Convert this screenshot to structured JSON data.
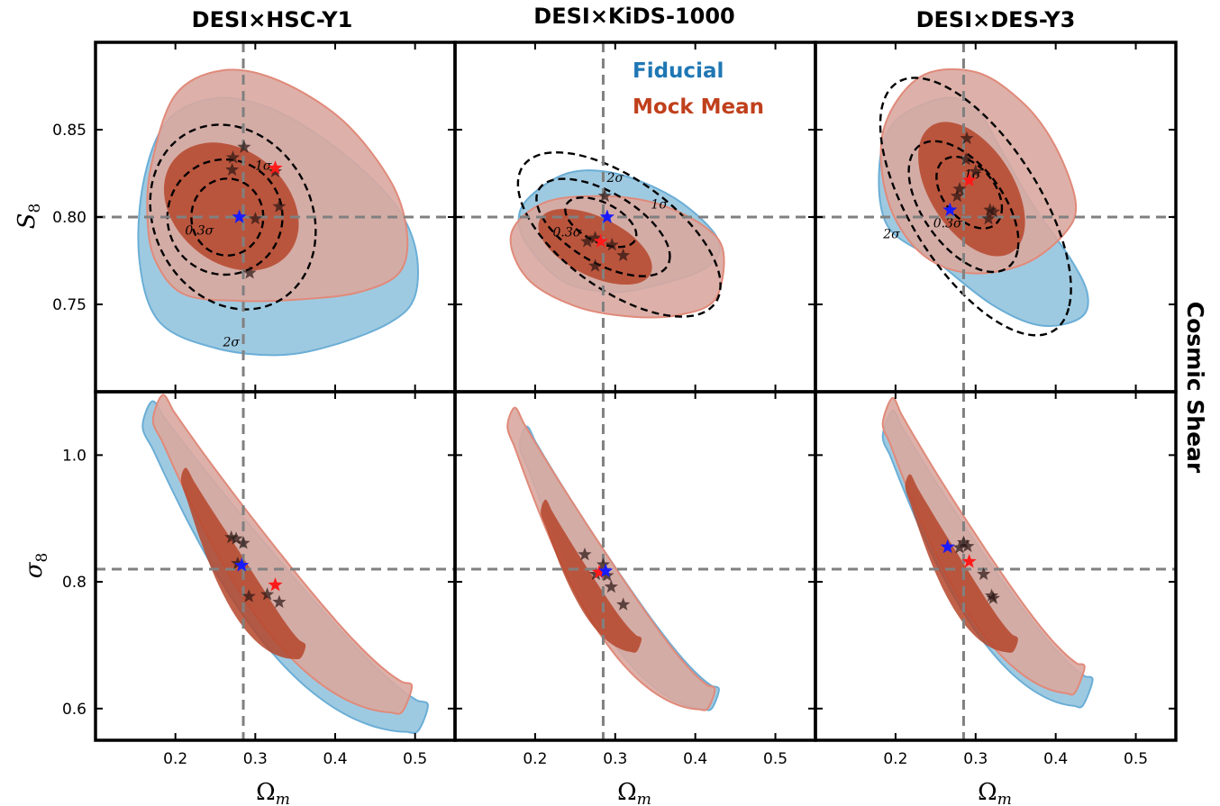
{
  "figure": {
    "columns": [
      "DESI×HSC-Y1",
      "DESI×KiDS-1000",
      "DESI×DES-Y3"
    ],
    "row_label": "Cosmic Shear",
    "xlabel": "Ω",
    "xlabel_sub": "m",
    "top_ylabel": "S",
    "top_ylabel_sub": "8",
    "bottom_ylabel": "σ",
    "bottom_ylabel_sub": "8",
    "legend": [
      {
        "label": "Fiducial",
        "color": "#1f77b4"
      },
      {
        "label": "Mock Mean",
        "color": "#c0401c"
      }
    ],
    "contour_labels": {
      "sigma2": "2σ",
      "sigma1": "1σ",
      "sigma03": "0.3σ"
    },
    "colors": {
      "fiducial_fill": "#9ecae1",
      "fiducial_edge": "#6baed6",
      "mock_outer_fill": "#d9a8a0",
      "mock_outer_edge": "#e08a7a",
      "mock_inner_fill": "#b5452a",
      "reference_line": "#808080"
    }
  },
  "chart_data": [
    {
      "type": "scatter",
      "panel": "DESI×HSC-Y1, S8 vs Ωm",
      "xlabel": "Ωm",
      "ylabel": "S8",
      "xlim": [
        0.1,
        0.55
      ],
      "ylim": [
        0.7,
        0.9
      ],
      "xticks": [
        "0.2",
        "0.3",
        "0.4",
        "0.5"
      ],
      "yticks": [
        "0.75",
        "0.80",
        "0.85"
      ],
      "reference": {
        "x": 0.285,
        "y": 0.8
      },
      "fiducial_best_fit": {
        "x": 0.28,
        "y": 0.8
      },
      "mock_mean_best_fit": {
        "x": 0.325,
        "y": 0.828
      },
      "mock_realizations": [
        [
          0.272,
          0.834
        ],
        [
          0.271,
          0.827
        ],
        [
          0.286,
          0.84
        ],
        [
          0.325,
          0.826
        ],
        [
          0.3,
          0.799
        ],
        [
          0.33,
          0.806
        ],
        [
          0.293,
          0.768
        ]
      ]
    },
    {
      "type": "scatter",
      "panel": "DESI×KiDS-1000, S8 vs Ωm",
      "xlabel": "Ωm",
      "ylabel": "S8",
      "xlim": [
        0.1,
        0.55
      ],
      "ylim": [
        0.7,
        0.9
      ],
      "xticks": [
        "0.2",
        "0.3",
        "0.4",
        "0.5"
      ],
      "yticks": [
        "0.75",
        "0.80",
        "0.85"
      ],
      "reference": {
        "x": 0.285,
        "y": 0.8
      },
      "fiducial_best_fit": {
        "x": 0.29,
        "y": 0.8
      },
      "mock_mean_best_fit": {
        "x": 0.282,
        "y": 0.786
      },
      "mock_realizations": [
        [
          0.287,
          0.812
        ],
        [
          0.275,
          0.788
        ],
        [
          0.265,
          0.786
        ],
        [
          0.296,
          0.784
        ],
        [
          0.31,
          0.778
        ],
        [
          0.275,
          0.772
        ]
      ]
    },
    {
      "type": "scatter",
      "panel": "DESI×DES-Y3, S8 vs Ωm",
      "xlabel": "Ωm",
      "ylabel": "S8",
      "xlim": [
        0.1,
        0.55
      ],
      "ylim": [
        0.7,
        0.9
      ],
      "xticks": [
        "0.2",
        "0.3",
        "0.4",
        "0.5"
      ],
      "yticks": [
        "0.75",
        "0.80",
        "0.85"
      ],
      "reference": {
        "x": 0.285,
        "y": 0.8
      },
      "fiducial_best_fit": {
        "x": 0.268,
        "y": 0.804
      },
      "mock_mean_best_fit": {
        "x": 0.292,
        "y": 0.821
      },
      "mock_realizations": [
        [
          0.289,
          0.845
        ],
        [
          0.288,
          0.833
        ],
        [
          0.3,
          0.826
        ],
        [
          0.28,
          0.816
        ],
        [
          0.277,
          0.812
        ],
        [
          0.318,
          0.804
        ],
        [
          0.322,
          0.803
        ],
        [
          0.316,
          0.799
        ]
      ]
    },
    {
      "type": "scatter",
      "panel": "DESI×HSC-Y1, σ8 vs Ωm",
      "xlabel": "Ωm",
      "ylabel": "σ8",
      "xlim": [
        0.1,
        0.55
      ],
      "ylim": [
        0.55,
        1.1
      ],
      "xticks": [
        "0.2",
        "0.3",
        "0.4",
        "0.5"
      ],
      "yticks": [
        "0.6",
        "0.8",
        "1.0"
      ],
      "reference": {
        "x": 0.285,
        "y": 0.82
      },
      "fiducial_best_fit": {
        "x": 0.283,
        "y": 0.826
      },
      "mock_mean_best_fit": {
        "x": 0.325,
        "y": 0.795
      },
      "mock_realizations": [
        [
          0.27,
          0.87
        ],
        [
          0.276,
          0.868
        ],
        [
          0.285,
          0.861
        ],
        [
          0.278,
          0.829
        ],
        [
          0.315,
          0.78
        ],
        [
          0.292,
          0.777
        ],
        [
          0.33,
          0.768
        ]
      ]
    },
    {
      "type": "scatter",
      "panel": "DESI×KiDS-1000, σ8 vs Ωm",
      "xlabel": "Ωm",
      "ylabel": "σ8",
      "xlim": [
        0.1,
        0.55
      ],
      "ylim": [
        0.55,
        1.1
      ],
      "xticks": [
        "0.2",
        "0.3",
        "0.4",
        "0.5"
      ],
      "yticks": [
        "0.6",
        "0.8",
        "1.0"
      ],
      "reference": {
        "x": 0.285,
        "y": 0.82
      },
      "fiducial_best_fit": {
        "x": 0.288,
        "y": 0.817
      },
      "mock_mean_best_fit": {
        "x": 0.28,
        "y": 0.815
      },
      "mock_realizations": [
        [
          0.262,
          0.843
        ],
        [
          0.285,
          0.827
        ],
        [
          0.276,
          0.812
        ],
        [
          0.29,
          0.81
        ],
        [
          0.295,
          0.792
        ],
        [
          0.31,
          0.764
        ]
      ]
    },
    {
      "type": "scatter",
      "panel": "DESI×DES-Y3, σ8 vs Ωm",
      "xlabel": "Ωm",
      "ylabel": "σ8",
      "xlim": [
        0.1,
        0.55
      ],
      "ylim": [
        0.55,
        1.1
      ],
      "xticks": [
        "0.2",
        "0.3",
        "0.4",
        "0.5"
      ],
      "yticks": [
        "0.6",
        "0.8",
        "1.0"
      ],
      "reference": {
        "x": 0.285,
        "y": 0.82
      },
      "fiducial_best_fit": {
        "x": 0.265,
        "y": 0.855
      },
      "mock_mean_best_fit": {
        "x": 0.292,
        "y": 0.832
      },
      "mock_realizations": [
        [
          0.285,
          0.862
        ],
        [
          0.29,
          0.856
        ],
        [
          0.28,
          0.854
        ],
        [
          0.31,
          0.812
        ],
        [
          0.32,
          0.778
        ],
        [
          0.322,
          0.774
        ]
      ]
    }
  ]
}
